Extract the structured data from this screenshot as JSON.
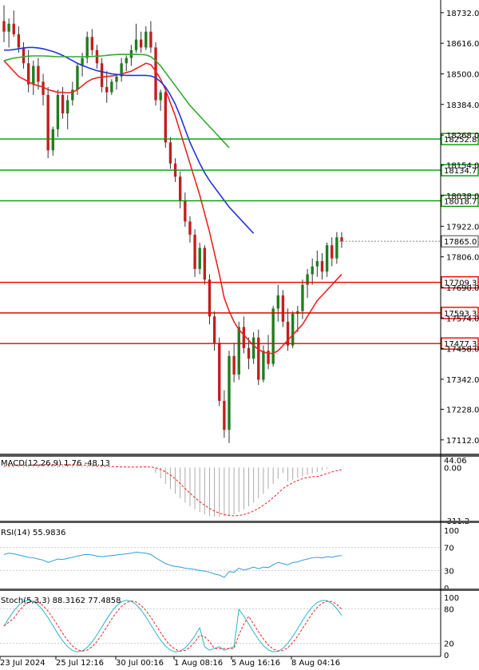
{
  "colors": {
    "background": "#ffffff",
    "axis": "#000000",
    "bull": "#1e7d1e",
    "bear": "#c21e1e",
    "ma_red": "#ee2222",
    "ma_blue": "#2233dd",
    "ma_green": "#33aa33",
    "level_green": "#009900",
    "level_red": "#ee0000",
    "indicator_line": "#2e9fd6",
    "macd_signal": "#ee2222",
    "macd_hist": "#aaaaaa",
    "stoch_main": "#2ab5c8",
    "stoch_signal": "#ee2222",
    "label_text": "#000000"
  },
  "chart_data": {
    "type": "candlestick",
    "title": "",
    "price_axis": {
      "range": [
        17060,
        18780
      ],
      "ticks": [
        "18732.0",
        "18616.0",
        "18500.0",
        "18384.0",
        "18268.0",
        "18154.0",
        "18038.0",
        "17922.0",
        "17806.0",
        "17690.0",
        "17574.0",
        "17458.0",
        "17342.0",
        "17228.0",
        "17112.0"
      ],
      "current_price_label": "17865.0",
      "current_price": 17865
    },
    "levels": [
      {
        "value": 18252.8,
        "label": "18252.8",
        "type": "resistance"
      },
      {
        "value": 18134.7,
        "label": "18134.7",
        "type": "resistance"
      },
      {
        "value": 18018.7,
        "label": "18018.7",
        "type": "resistance"
      },
      {
        "value": 17709.3,
        "label": "17709.3",
        "type": "support"
      },
      {
        "value": 17593.3,
        "label": "17593.3",
        "type": "support"
      },
      {
        "value": 17477.3,
        "label": "17477.3",
        "type": "support"
      }
    ],
    "x_axis_labels": [
      "23 Jul 2024",
      "25 Jul 12:16",
      "30 Jul 00:16",
      "1 Aug 08:16",
      "5 Aug 16:16",
      "8 Aug 04:16"
    ],
    "candles": [
      [
        18700,
        18760,
        18620,
        18660
      ],
      [
        18660,
        18710,
        18600,
        18690
      ],
      [
        18690,
        18740,
        18640,
        18650
      ],
      [
        18650,
        18680,
        18580,
        18600
      ],
      [
        18600,
        18620,
        18520,
        18540
      ],
      [
        18540,
        18590,
        18430,
        18460
      ],
      [
        18460,
        18550,
        18420,
        18530
      ],
      [
        18530,
        18560,
        18440,
        18470
      ],
      [
        18470,
        18500,
        18380,
        18420
      ],
      [
        18420,
        18450,
        18180,
        18210
      ],
      [
        18210,
        18300,
        18190,
        18290
      ],
      [
        18290,
        18440,
        18260,
        18420
      ],
      [
        18420,
        18450,
        18330,
        18350
      ],
      [
        18350,
        18420,
        18290,
        18400
      ],
      [
        18400,
        18470,
        18380,
        18440
      ],
      [
        18440,
        18540,
        18420,
        18530
      ],
      [
        18530,
        18580,
        18490,
        18560
      ],
      [
        18560,
        18660,
        18540,
        18640
      ],
      [
        18640,
        18670,
        18570,
        18590
      ],
      [
        18590,
        18610,
        18520,
        18540
      ],
      [
        18540,
        18560,
        18430,
        18450
      ],
      [
        18450,
        18510,
        18390,
        18430
      ],
      [
        18430,
        18480,
        18420,
        18470
      ],
      [
        18470,
        18500,
        18440,
        18490
      ],
      [
        18490,
        18560,
        18470,
        18540
      ],
      [
        18540,
        18570,
        18510,
        18560
      ],
      [
        18560,
        18610,
        18530,
        18590
      ],
      [
        18590,
        18690,
        18580,
        18630
      ],
      [
        18630,
        18660,
        18580,
        18600
      ],
      [
        18600,
        18680,
        18590,
        18660
      ],
      [
        18660,
        18700,
        18580,
        18600
      ],
      [
        18600,
        18620,
        18380,
        18400
      ],
      [
        18400,
        18440,
        18360,
        18430
      ],
      [
        18430,
        18450,
        18220,
        18240
      ],
      [
        18240,
        18260,
        18140,
        18160
      ],
      [
        18160,
        18180,
        18090,
        18110
      ],
      [
        18110,
        18130,
        17990,
        18020
      ],
      [
        18020,
        18050,
        17920,
        17940
      ],
      [
        17940,
        17960,
        17860,
        17890
      ],
      [
        17890,
        17910,
        17730,
        17760
      ],
      [
        17760,
        17860,
        17740,
        17840
      ],
      [
        17840,
        17850,
        17700,
        17720
      ],
      [
        17720,
        17740,
        17550,
        17580
      ],
      [
        17580,
        17600,
        17450,
        17480
      ],
      [
        17480,
        17500,
        17240,
        17260
      ],
      [
        17260,
        17300,
        17120,
        17150
      ],
      [
        17150,
        17450,
        17100,
        17430
      ],
      [
        17430,
        17480,
        17330,
        17360
      ],
      [
        17360,
        17560,
        17340,
        17540
      ],
      [
        17540,
        17580,
        17440,
        17460
      ],
      [
        17460,
        17500,
        17380,
        17420
      ],
      [
        17420,
        17520,
        17400,
        17500
      ],
      [
        17500,
        17530,
        17320,
        17340
      ],
      [
        17340,
        17470,
        17330,
        17450
      ],
      [
        17450,
        17510,
        17380,
        17400
      ],
      [
        17400,
        17620,
        17390,
        17610
      ],
      [
        17610,
        17700,
        17560,
        17660
      ],
      [
        17660,
        17680,
        17540,
        17560
      ],
      [
        17560,
        17610,
        17450,
        17470
      ],
      [
        17470,
        17600,
        17460,
        17590
      ],
      [
        17590,
        17620,
        17520,
        17600
      ],
      [
        17600,
        17720,
        17570,
        17700
      ],
      [
        17700,
        17760,
        17650,
        17740
      ],
      [
        17740,
        17800,
        17700,
        17770
      ],
      [
        17770,
        17830,
        17730,
        17790
      ],
      [
        17790,
        17820,
        17720,
        17750
      ],
      [
        17750,
        17860,
        17730,
        17850
      ],
      [
        17850,
        17880,
        17770,
        17800
      ],
      [
        17800,
        17900,
        17780,
        17880
      ],
      [
        17880,
        17900,
        17840,
        17865
      ]
    ],
    "moving_averages": [
      {
        "color_key": "ma_red",
        "values": [
          18550,
          18530,
          18510,
          18490,
          18480,
          18470,
          18460,
          18455,
          18450,
          18440,
          18435,
          18430,
          18430,
          18428,
          18430,
          18440,
          18455,
          18470,
          18480,
          18485,
          18488,
          18490,
          18492,
          18495,
          18500,
          18505,
          18510,
          18520,
          18530,
          18540,
          18535,
          18510,
          18480,
          18440,
          18390,
          18340,
          18280,
          18220,
          18160,
          18100,
          18040,
          17970,
          17900,
          17820,
          17740,
          17650,
          17600,
          17560,
          17530,
          17510,
          17490,
          17470,
          17455,
          17445,
          17440,
          17440,
          17450,
          17470,
          17490,
          17510,
          17530,
          17550,
          17580,
          17610,
          17640,
          17660,
          17680,
          17700,
          17720,
          17740
        ]
      },
      {
        "color_key": "ma_blue",
        "values": [
          18590,
          18590,
          18592,
          18595,
          18598,
          18600,
          18600,
          18598,
          18595,
          18590,
          18585,
          18578,
          18570,
          18560,
          18550,
          18540,
          18532,
          18525,
          18518,
          18512,
          18508,
          18504,
          18500,
          18498,
          18496,
          18494,
          18494,
          18494,
          18494,
          18494,
          18492,
          18485,
          18470,
          18450,
          18420,
          18385,
          18340,
          18290,
          18240,
          18200,
          18160,
          18125,
          18095,
          18070,
          18045,
          18020,
          17995,
          17975,
          17955,
          17935,
          17915,
          17895
        ]
      },
      {
        "color_key": "ma_green",
        "values": [
          18550,
          18555,
          18560,
          18562,
          18565,
          18567,
          18568,
          18568,
          18568,
          18567,
          18566,
          18565,
          18565,
          18565,
          18565,
          18565,
          18565,
          18565,
          18566,
          18567,
          18568,
          18570,
          18572,
          18573,
          18574,
          18574,
          18574,
          18574,
          18573,
          18572,
          18565,
          18550,
          18530,
          18505,
          18480,
          18455,
          18430,
          18405,
          18380,
          18360,
          18340,
          18320,
          18300,
          18280,
          18260,
          18240,
          18220
        ]
      }
    ]
  },
  "panels": {
    "macd": {
      "label": "MACD(12,26,9) 1.76 -48.13",
      "ticks": [
        "44.06",
        "0.00",
        "-311.2"
      ],
      "range": [
        -311.2,
        44.06
      ]
    },
    "rsi": {
      "label": "RSI(14) 55.9836",
      "ticks": [
        "100",
        "70",
        "30",
        "0"
      ],
      "range": [
        0,
        100
      ],
      "values": [
        58,
        60,
        59,
        57,
        55,
        53,
        52,
        50,
        48,
        44,
        47,
        50,
        49,
        51,
        53,
        55,
        57,
        58,
        57,
        55,
        54,
        55,
        56,
        57,
        58,
        59,
        60,
        62,
        61,
        60,
        58,
        52,
        47,
        42,
        39,
        37,
        36,
        34,
        33,
        32,
        30,
        29,
        27,
        24,
        22,
        18,
        28,
        27,
        34,
        31,
        33,
        36,
        33,
        36,
        35,
        40,
        44,
        42,
        40,
        44,
        45,
        48,
        50,
        52,
        53,
        52,
        54,
        53,
        55,
        56
      ]
    },
    "stoch": {
      "label": "Stoch(5,3,3) 88.3162 77.4858",
      "ticks": [
        "100",
        "80",
        "20",
        "0"
      ],
      "range": [
        0,
        100
      ]
    }
  }
}
